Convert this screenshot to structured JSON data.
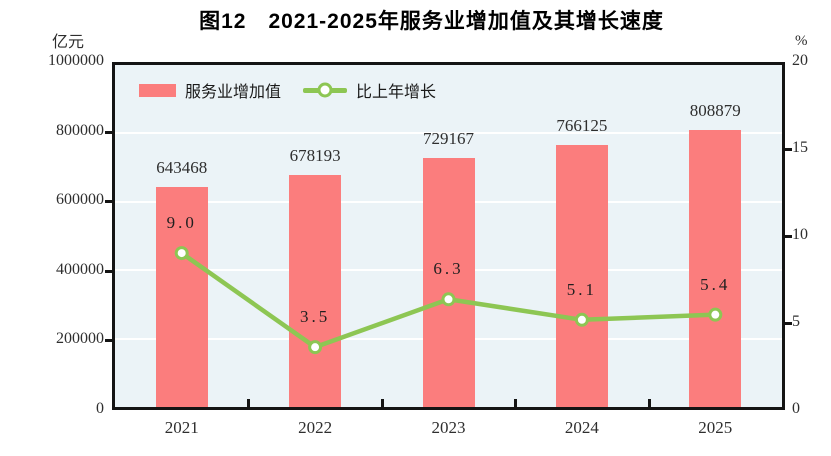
{
  "title": "图12　2021-2025年服务业增加值及其增长速度",
  "left_axis_unit": "亿元",
  "right_axis_unit": "%",
  "legend": {
    "bar_label": "服务业增加值",
    "line_label": "比上年增长"
  },
  "colors": {
    "bar": "#fb7d7d",
    "line": "#8dc653",
    "marker_fill": "#ffffff",
    "plot_bg": "#ebf3f7",
    "grid": "#ffffff",
    "axis": "#141414",
    "text": "#2e2e2e"
  },
  "chart_data": {
    "type": "bar+line",
    "categories": [
      "2021",
      "2022",
      "2023",
      "2024",
      "2025"
    ],
    "series": [
      {
        "name": "服务业增加值",
        "type": "bar",
        "axis": "left",
        "values": [
          643468,
          678193,
          729167,
          766125,
          808879
        ],
        "labels": [
          "643468",
          "678193",
          "729167",
          "766125",
          "808879"
        ]
      },
      {
        "name": "比上年增长",
        "type": "line",
        "axis": "right",
        "values": [
          9.0,
          3.5,
          6.3,
          5.1,
          5.4
        ],
        "labels": [
          "9.0",
          "3.5",
          "6.3",
          "5.1",
          "5.4"
        ]
      }
    ],
    "left_axis": {
      "min": 0,
      "max": 1000000,
      "step": 200000,
      "ticks": [
        "0",
        "200000",
        "400000",
        "600000",
        "800000",
        "1000000"
      ]
    },
    "right_axis": {
      "min": 0,
      "max": 20,
      "step": 5,
      "ticks": [
        "0",
        "5",
        "10",
        "15",
        "20"
      ]
    },
    "grid": true,
    "legend_position": "top-left-inside"
  }
}
